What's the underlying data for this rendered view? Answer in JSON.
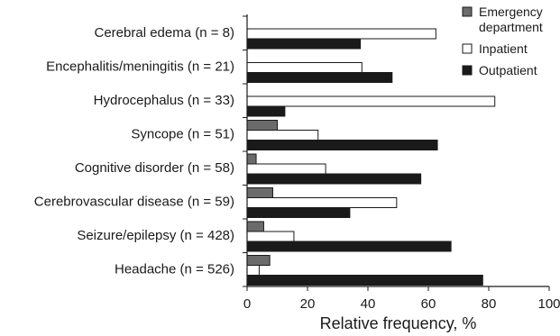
{
  "chart_data": {
    "type": "bar",
    "orientation": "horizontal",
    "categories": [
      "Cerebral edema (n = 8)",
      "Encephalitis/meningitis (n = 21)",
      "Hydrocephalus (n = 33)",
      "Syncope (n = 51)",
      "Cognitive disorder (n = 58)",
      "Cerebrovascular disease (n = 59)",
      "Seizure/epilepsy (n = 428)",
      "Headache (n = 526)"
    ],
    "series": [
      {
        "name": "Emergency department",
        "legend_lines": [
          "Emergency",
          "department"
        ],
        "color": "#6b6b6b",
        "values": [
          0,
          0,
          0,
          10,
          3,
          8.5,
          5.5,
          7.5
        ]
      },
      {
        "name": "Inpatient",
        "legend_lines": [
          "Inpatient"
        ],
        "color": "#ffffff",
        "values": [
          62.5,
          38,
          82,
          23.5,
          26,
          49.5,
          15.5,
          4
        ]
      },
      {
        "name": "Outpatient",
        "legend_lines": [
          "Outpatient"
        ],
        "color": "#1a1a1a",
        "values": [
          37.5,
          48,
          12.5,
          63,
          57.5,
          34,
          67.5,
          78
        ]
      }
    ],
    "xlabel": "Relative frequency, %",
    "ylabel": "",
    "xlim": [
      0,
      100
    ],
    "xticks": [
      0,
      20,
      40,
      60,
      80,
      100
    ],
    "grid": false,
    "legend_position": "top-right"
  }
}
